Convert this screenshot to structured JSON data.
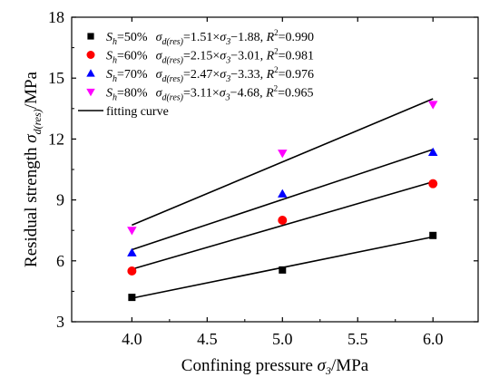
{
  "chart_data": {
    "type": "scatter",
    "xlabel": {
      "pre": "Confining pressure ",
      "sym": "σ",
      "sub": "3",
      "post": "/MPa"
    },
    "ylabel": {
      "pre": "Residual strength ",
      "sym": "σ",
      "sub": "d(res)",
      "post": "/MPa"
    },
    "xlim": [
      3.6,
      6.3
    ],
    "ylim": [
      3,
      18
    ],
    "x_ticks": [
      4.0,
      4.5,
      5.0,
      5.5,
      6.0
    ],
    "x_tick_labels": [
      "4.0",
      "4.5",
      "5.0",
      "5.5",
      "6.0"
    ],
    "y_ticks": [
      3,
      6,
      9,
      12,
      15,
      18
    ],
    "y_tick_labels": [
      "3",
      "6",
      "9",
      "12",
      "15",
      "18"
    ],
    "legend_position": "top-left",
    "x": [
      4.0,
      5.0,
      6.0
    ],
    "series": [
      {
        "name": "Sh=50%",
        "legend": {
          "s": "S",
          "s_sub": "h",
          "pct": "=50%",
          "eq_lhs_sym": "σ",
          "eq_lhs_sub": "d(res)",
          "eq_mid": "=1.51×",
          "eq_x_sym": "σ",
          "eq_x_sub": "3",
          "eq_tail": "−1.88, ",
          "r": "R",
          "r_sup": "2",
          "r_val": "=0.990"
        },
        "marker": "square",
        "color": "#000000",
        "values": [
          4.2,
          5.55,
          7.25
        ],
        "fit": {
          "slope": 1.51,
          "intercept": -1.88
        }
      },
      {
        "name": "Sh=60%",
        "legend": {
          "s": "S",
          "s_sub": "h",
          "pct": "=60%",
          "eq_lhs_sym": "σ",
          "eq_lhs_sub": "d(res)",
          "eq_mid": "=2.15×",
          "eq_x_sym": "σ",
          "eq_x_sub": "3",
          "eq_tail": "−3.01, ",
          "r": "R",
          "r_sup": "2",
          "r_val": "=0.981"
        },
        "marker": "circle",
        "color": "#ff0000",
        "values": [
          5.5,
          8.0,
          9.8
        ],
        "fit": {
          "slope": 2.15,
          "intercept": -3.01
        }
      },
      {
        "name": "Sh=70%",
        "legend": {
          "s": "S",
          "s_sub": "h",
          "pct": "=70%",
          "eq_lhs_sym": "σ",
          "eq_lhs_sub": "d(res)",
          "eq_mid": "=2.47×",
          "eq_x_sym": "σ",
          "eq_x_sub": "3",
          "eq_tail": "−3.33, ",
          "r": "R",
          "r_sup": "2",
          "r_val": "=0.976"
        },
        "marker": "triangle-up",
        "color": "#0000ff",
        "values": [
          6.4,
          9.3,
          11.35
        ],
        "fit": {
          "slope": 2.47,
          "intercept": -3.33
        }
      },
      {
        "name": "Sh=80%",
        "legend": {
          "s": "S",
          "s_sub": "h",
          "pct": "=80%",
          "eq_lhs_sym": "σ",
          "eq_lhs_sub": "d(res)",
          "eq_mid": "=3.11×",
          "eq_x_sym": "σ",
          "eq_x_sub": "3",
          "eq_tail": "−4.68, ",
          "r": "R",
          "r_sup": "2",
          "r_val": "=0.965"
        },
        "marker": "triangle-down",
        "color": "#ff00ff",
        "values": [
          7.5,
          11.3,
          13.7
        ],
        "fit": {
          "slope": 3.11,
          "intercept": -4.68
        }
      }
    ],
    "fit_legend_label": "fitting curve"
  }
}
